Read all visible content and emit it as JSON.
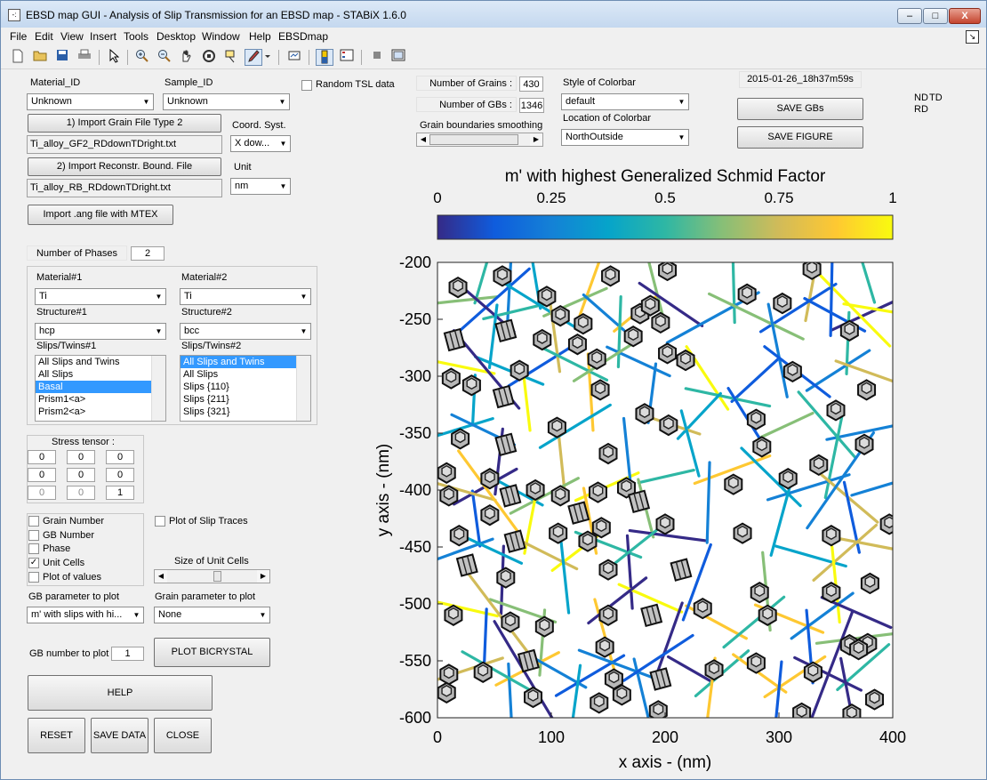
{
  "window": {
    "title": "EBSD map GUI - Analysis of Slip Transmission for an EBSD map -  STABiX 1.6.0",
    "app_icon_glyph": "-:",
    "minimize_glyph": "–",
    "maximize_glyph": "□",
    "close_glyph": "X",
    "dock_glyph": "↘"
  },
  "menu": [
    "File",
    "Edit",
    "View",
    "Insert",
    "Tools",
    "Desktop",
    "Window",
    "Help",
    "EBSDmap"
  ],
  "toolbar_icons": [
    "new-file-icon",
    "open-folder-icon",
    "save-icon",
    "print-icon",
    "pointer-icon",
    "zoom-in-icon",
    "zoom-out-icon",
    "pan-hand-icon",
    "rotate-3d-icon",
    "data-cursor-icon",
    "brush-icon",
    "link-plot-icon",
    "colorbar-icon",
    "legend-icon",
    "hide-plot-tools-icon",
    "show-plot-tools-icon"
  ],
  "left": {
    "material_id_label": "Material_ID",
    "material_id_value": "Unknown",
    "sample_id_label": "Sample_ID",
    "sample_id_value": "Unknown",
    "random_tsl_label": "Random TSL data",
    "import_grain_btn": "1) Import Grain File Type 2",
    "grain_file": "Ti_alloy_GF2_RDdownTDright.txt",
    "coord_syst_label": "Coord. Syst.",
    "coord_syst_value": "X dow...",
    "import_rb_btn": "2) Import Reconstr. Bound. File",
    "rb_file": "Ti_alloy_RB_RDdownTDright.txt",
    "unit_label": "Unit",
    "unit_value": "nm",
    "import_ang_btn": "Import .ang file with MTEX",
    "num_phases_label": "Number of Phases",
    "num_phases_value": "2",
    "material1_label": "Material#1",
    "material1_value": "Ti",
    "material2_label": "Material#2",
    "material2_value": "Ti",
    "structure1_label": "Structure#1",
    "structure1_value": "hcp",
    "structure2_label": "Structure#2",
    "structure2_value": "bcc",
    "slips1_label": "Slips/Twins#1",
    "slips1_items": [
      "All Slips and Twins",
      "All Slips",
      "Basal",
      "Prism1<a>",
      "Prism2<a>"
    ],
    "slips2_label": "Slips/Twins#2",
    "slips2_items": [
      "All Slips and Twins",
      "All Slips",
      "Slips {110}",
      "Slips {211}",
      "Slips {321}"
    ],
    "stress_label": "Stress tensor :",
    "stress": [
      [
        "0",
        "0",
        "0"
      ],
      [
        "0",
        "0",
        "0"
      ],
      [
        "0",
        "0",
        "1"
      ]
    ],
    "cb_grain_number": "Grain Number",
    "cb_gb_number": "GB Number",
    "cb_phase": "Phase",
    "cb_unit_cells": "Unit Cells",
    "cb_unit_cells_checked": "✓",
    "cb_plot_values": "Plot of values",
    "cb_slip_traces": "Plot of Slip Traces",
    "size_unit_cells_label": "Size of Unit Cells",
    "gb_param_label": "GB parameter to plot",
    "gb_param_value": "m' with slips with hi...",
    "grain_param_label": "Grain parameter to plot",
    "grain_param_value": "None",
    "gb_number_label": "GB number to plot",
    "gb_number_value": "1",
    "plot_bicrystal_btn": "PLOT BICRYSTAL",
    "help_btn": "HELP",
    "reset_btn": "RESET",
    "save_data_btn": "SAVE DATA",
    "close_btn": "CLOSE"
  },
  "top": {
    "num_grains_label": "Number of Grains :",
    "num_grains_value": "430",
    "num_gbs_label": "Number of GBs :",
    "num_gbs_value": "1346",
    "smoothing_label": "Grain boundaries smoothing",
    "colorbar_style_label": "Style of Colorbar",
    "colorbar_style_value": "default",
    "colorbar_loc_label": "Location of Colorbar",
    "colorbar_loc_value": "NorthOutside",
    "timestamp": "2015-01-26_18h37m59s",
    "save_gbs_btn": "SAVE GBs",
    "save_figure_btn": "SAVE FIGURE",
    "td_label": "TD",
    "nd_label": "ND",
    "rd_label": "RD"
  },
  "colors": {
    "parula": [
      "#352a87",
      "#0f5cdd",
      "#1481d6",
      "#06a4ca",
      "#2eb7a4",
      "#87bf77",
      "#d1bb59",
      "#fec832",
      "#f9fb0e"
    ]
  },
  "chart_data": {
    "type": "map",
    "title": "m' with highest Generalized Schmid Factor",
    "colorbar_ticks": [
      "0",
      "0.25",
      "0.5",
      "0.75",
      "1"
    ],
    "colorbar_range": [
      0,
      1
    ],
    "xlabel": "x axis - (nm)",
    "ylabel": "y axis - (nm)",
    "xlim": [
      0,
      400
    ],
    "ylim": [
      -600,
      -200
    ],
    "xticks": [
      "0",
      "100",
      "200",
      "300",
      "400"
    ],
    "yticks": [
      "-200",
      "-250",
      "-300",
      "-350",
      "-400",
      "-450",
      "-500",
      "-550",
      "-600"
    ],
    "grains": [
      [
        18,
        -205
      ],
      [
        62,
        -218
      ],
      [
        110,
        -210
      ],
      [
        160,
        -228
      ],
      [
        222,
        -212
      ],
      [
        298,
        -210
      ],
      [
        362,
        -222
      ],
      [
        395,
        -212
      ],
      [
        24,
        -262
      ],
      [
        74,
        -268
      ],
      [
        132,
        -260
      ],
      [
        188,
        -262
      ],
      [
        262,
        -285
      ],
      [
        336,
        -270
      ],
      [
        385,
        -272
      ],
      [
        12,
        -320
      ],
      [
        52,
        -322
      ],
      [
        104,
        -316
      ],
      [
        165,
        -312
      ],
      [
        212,
        -318
      ],
      [
        296,
        -322
      ],
      [
        368,
        -320
      ],
      [
        28,
        -372
      ],
      [
        80,
        -378
      ],
      [
        138,
        -372
      ],
      [
        196,
        -366
      ],
      [
        248,
        -352
      ],
      [
        316,
        -365
      ],
      [
        380,
        -378
      ],
      [
        12,
        -428
      ],
      [
        56,
        -422
      ],
      [
        108,
        -432
      ],
      [
        160,
        -422
      ],
      [
        206,
        -410
      ],
      [
        270,
        -412
      ],
      [
        336,
        -430
      ],
      [
        392,
        -418
      ],
      [
        30,
        -478
      ],
      [
        84,
        -480
      ],
      [
        140,
        -474
      ],
      [
        198,
        -470
      ],
      [
        258,
        -492
      ],
      [
        320,
        -486
      ],
      [
        380,
        -480
      ],
      [
        18,
        -530
      ],
      [
        66,
        -532
      ],
      [
        118,
        -536
      ],
      [
        176,
        -520
      ],
      [
        232,
        -540
      ],
      [
        298,
        -540
      ],
      [
        356,
        -535
      ],
      [
        36,
        -585
      ],
      [
        92,
        -582
      ],
      [
        150,
        -590
      ],
      [
        212,
        -575
      ],
      [
        268,
        -582
      ],
      [
        330,
        -588
      ],
      [
        392,
        -576
      ]
    ],
    "unit_cells": [
      {
        "x": 18,
        "y": -222,
        "t": "h"
      },
      {
        "x": 57,
        "y": -212,
        "t": "h"
      },
      {
        "x": 96,
        "y": -230,
        "t": "h"
      },
      {
        "x": 108,
        "y": -247,
        "t": "h"
      },
      {
        "x": 128,
        "y": -254,
        "t": "h"
      },
      {
        "x": 152,
        "y": -212,
        "t": "h"
      },
      {
        "x": 178,
        "y": -245,
        "t": "h"
      },
      {
        "x": 187,
        "y": -238,
        "t": "h"
      },
      {
        "x": 196,
        "y": -253,
        "t": "h"
      },
      {
        "x": 202,
        "y": -207,
        "t": "h"
      },
      {
        "x": 272,
        "y": -228,
        "t": "h"
      },
      {
        "x": 303,
        "y": -236,
        "t": "h"
      },
      {
        "x": 329,
        "y": -206,
        "t": "h"
      },
      {
        "x": 15,
        "y": -268,
        "t": "b"
      },
      {
        "x": 60,
        "y": -260,
        "t": "b"
      },
      {
        "x": 92,
        "y": -268,
        "t": "h"
      },
      {
        "x": 123,
        "y": -272,
        "t": "h"
      },
      {
        "x": 140,
        "y": -285,
        "t": "h"
      },
      {
        "x": 172,
        "y": -265,
        "t": "h"
      },
      {
        "x": 218,
        "y": -286,
        "t": "h"
      },
      {
        "x": 312,
        "y": -296,
        "t": "h"
      },
      {
        "x": 362,
        "y": -260,
        "t": "h"
      },
      {
        "x": 12,
        "y": -302,
        "t": "h"
      },
      {
        "x": 30,
        "y": -308,
        "t": "h"
      },
      {
        "x": 58,
        "y": -318,
        "t": "b"
      },
      {
        "x": 72,
        "y": -295,
        "t": "h"
      },
      {
        "x": 143,
        "y": -312,
        "t": "h"
      },
      {
        "x": 202,
        "y": -280,
        "t": "h"
      },
      {
        "x": 182,
        "y": -333,
        "t": "h"
      },
      {
        "x": 280,
        "y": -338,
        "t": "h"
      },
      {
        "x": 350,
        "y": -330,
        "t": "h"
      },
      {
        "x": 377,
        "y": -312,
        "t": "h"
      },
      {
        "x": 20,
        "y": -355,
        "t": "h"
      },
      {
        "x": 60,
        "y": -360,
        "t": "b"
      },
      {
        "x": 105,
        "y": -345,
        "t": "h"
      },
      {
        "x": 150,
        "y": -368,
        "t": "h"
      },
      {
        "x": 203,
        "y": -343,
        "t": "h"
      },
      {
        "x": 285,
        "y": -362,
        "t": "h"
      },
      {
        "x": 335,
        "y": -378,
        "t": "h"
      },
      {
        "x": 375,
        "y": -360,
        "t": "h"
      },
      {
        "x": 8,
        "y": -385,
        "t": "h"
      },
      {
        "x": 10,
        "y": -405,
        "t": "h"
      },
      {
        "x": 46,
        "y": -390,
        "t": "h"
      },
      {
        "x": 64,
        "y": -405,
        "t": "b"
      },
      {
        "x": 86,
        "y": -400,
        "t": "h"
      },
      {
        "x": 108,
        "y": -405,
        "t": "h"
      },
      {
        "x": 124,
        "y": -420,
        "t": "b"
      },
      {
        "x": 141,
        "y": -402,
        "t": "h"
      },
      {
        "x": 166,
        "y": -398,
        "t": "h"
      },
      {
        "x": 177,
        "y": -410,
        "t": "b"
      },
      {
        "x": 260,
        "y": -395,
        "t": "h"
      },
      {
        "x": 308,
        "y": -390,
        "t": "h"
      },
      {
        "x": 46,
        "y": -422,
        "t": "h"
      },
      {
        "x": 19,
        "y": -440,
        "t": "h"
      },
      {
        "x": 68,
        "y": -445,
        "t": "b"
      },
      {
        "x": 106,
        "y": -438,
        "t": "h"
      },
      {
        "x": 132,
        "y": -445,
        "t": "h"
      },
      {
        "x": 144,
        "y": -433,
        "t": "h"
      },
      {
        "x": 200,
        "y": -430,
        "t": "h"
      },
      {
        "x": 268,
        "y": -438,
        "t": "h"
      },
      {
        "x": 346,
        "y": -440,
        "t": "h"
      },
      {
        "x": 397,
        "y": -430,
        "t": "h"
      },
      {
        "x": 26,
        "y": -466,
        "t": "b"
      },
      {
        "x": 60,
        "y": -477,
        "t": "h"
      },
      {
        "x": 150,
        "y": -470,
        "t": "h"
      },
      {
        "x": 214,
        "y": -470,
        "t": "b"
      },
      {
        "x": 283,
        "y": -490,
        "t": "h"
      },
      {
        "x": 346,
        "y": -490,
        "t": "h"
      },
      {
        "x": 380,
        "y": -482,
        "t": "h"
      },
      {
        "x": 14,
        "y": -510,
        "t": "h"
      },
      {
        "x": 64,
        "y": -516,
        "t": "h"
      },
      {
        "x": 94,
        "y": -520,
        "t": "h"
      },
      {
        "x": 150,
        "y": -510,
        "t": "h"
      },
      {
        "x": 188,
        "y": -510,
        "t": "b"
      },
      {
        "x": 233,
        "y": -504,
        "t": "h"
      },
      {
        "x": 290,
        "y": -510,
        "t": "h"
      },
      {
        "x": 362,
        "y": -536,
        "t": "h"
      },
      {
        "x": 378,
        "y": -535,
        "t": "h"
      },
      {
        "x": 10,
        "y": -562,
        "t": "h"
      },
      {
        "x": 40,
        "y": -560,
        "t": "h"
      },
      {
        "x": 80,
        "y": -550,
        "t": "b"
      },
      {
        "x": 147,
        "y": -538,
        "t": "h"
      },
      {
        "x": 155,
        "y": -566,
        "t": "h"
      },
      {
        "x": 196,
        "y": -566,
        "t": "b"
      },
      {
        "x": 243,
        "y": -558,
        "t": "h"
      },
      {
        "x": 280,
        "y": -552,
        "t": "h"
      },
      {
        "x": 330,
        "y": -560,
        "t": "h"
      },
      {
        "x": 370,
        "y": -540,
        "t": "h"
      },
      {
        "x": 8,
        "y": -578,
        "t": "h"
      },
      {
        "x": 84,
        "y": -582,
        "t": "h"
      },
      {
        "x": 142,
        "y": -587,
        "t": "h"
      },
      {
        "x": 162,
        "y": -580,
        "t": "h"
      },
      {
        "x": 194,
        "y": -594,
        "t": "h"
      },
      {
        "x": 320,
        "y": -596,
        "t": "h"
      },
      {
        "x": 384,
        "y": -584,
        "t": "h"
      },
      {
        "x": 364,
        "y": -597,
        "t": "h"
      }
    ]
  }
}
